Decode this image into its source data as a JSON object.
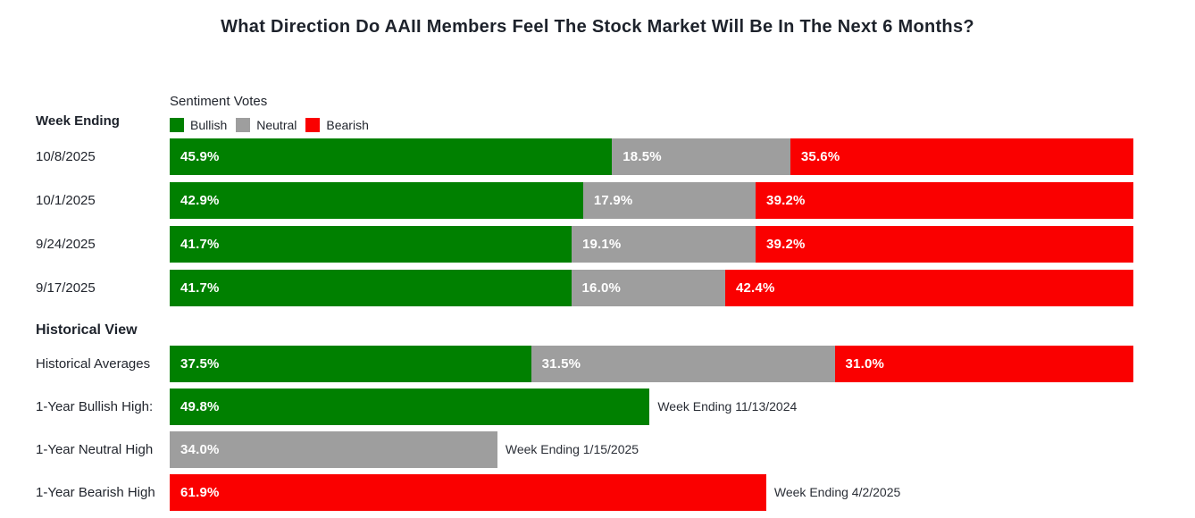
{
  "header": {
    "title": "What Direction Do AAII Members Feel The Stock Market Will Be In The Next 6 Months?"
  },
  "colors": {
    "bullish": "#008000",
    "neutral": "#9e9e9e",
    "bearish": "#fa0000",
    "text_dark": "#1d222b",
    "bar_label_text": "#ffffff"
  },
  "legend": {
    "title": "Sentiment Votes",
    "items": [
      {
        "label": "Bullish",
        "series": "bullish"
      },
      {
        "label": "Neutral",
        "series": "neutral"
      },
      {
        "label": "Bearish",
        "series": "bearish"
      }
    ]
  },
  "labels": {
    "week_ending_header": "Week Ending",
    "historical_header": "Historical View"
  },
  "chart_data": {
    "type": "bar",
    "orientation": "horizontal",
    "stacked": true,
    "unit": "%",
    "xlim": [
      0,
      100
    ],
    "grid": false,
    "legend_position": "top",
    "series_names": [
      "Bullish",
      "Neutral",
      "Bearish"
    ],
    "weekly": {
      "header": "Week Ending",
      "rows": [
        {
          "label": "10/8/2025",
          "kind": "stacked",
          "values": {
            "bullish": 45.9,
            "neutral": 18.5,
            "bearish": 35.6
          }
        },
        {
          "label": "10/1/2025",
          "kind": "stacked",
          "values": {
            "bullish": 42.9,
            "neutral": 17.9,
            "bearish": 39.2
          }
        },
        {
          "label": "9/24/2025",
          "kind": "stacked",
          "values": {
            "bullish": 41.7,
            "neutral": 19.1,
            "bearish": 39.2
          }
        },
        {
          "label": "9/17/2025",
          "kind": "stacked",
          "values": {
            "bullish": 41.7,
            "neutral": 16.0,
            "bearish": 42.4
          }
        }
      ]
    },
    "historical": {
      "header": "Historical View",
      "rows": [
        {
          "label": "Historical Averages",
          "kind": "stacked",
          "values": {
            "bullish": 37.5,
            "neutral": 31.5,
            "bearish": 31.0
          }
        },
        {
          "label": "1-Year Bullish High:",
          "kind": "single",
          "series": "bullish",
          "value": 49.8,
          "annotation": "Week Ending 11/13/2024"
        },
        {
          "label": "1-Year Neutral High",
          "kind": "single",
          "series": "neutral",
          "value": 34.0,
          "annotation": "Week Ending 1/15/2025"
        },
        {
          "label": "1-Year Bearish High",
          "kind": "single",
          "series": "bearish",
          "value": 61.9,
          "annotation": "Week Ending 4/2/2025"
        }
      ]
    }
  }
}
